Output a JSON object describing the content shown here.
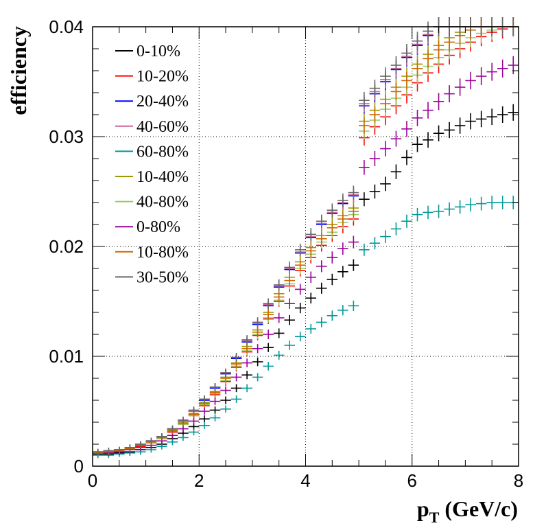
{
  "chart_data": {
    "type": "scatter",
    "title": "",
    "xlabel_main": "p",
    "xlabel_sub": "T",
    "xlabel_unit": " (GeV/c)",
    "ylabel": "efficiency",
    "xlim": [
      0,
      8
    ],
    "ylim": [
      0,
      0.04
    ],
    "x_ticks": [
      0,
      2,
      4,
      6,
      8
    ],
    "x_tick_labels": [
      "0",
      "2",
      "4",
      "6",
      "8"
    ],
    "y_ticks": [
      0,
      0.01,
      0.02,
      0.03,
      0.04
    ],
    "y_tick_labels": [
      "0",
      "0.01",
      "0.02",
      "0.03",
      "0.04"
    ],
    "grid": true,
    "legend_position": "top-left",
    "x": [
      0.1,
      0.3,
      0.5,
      0.7,
      0.9,
      1.1,
      1.3,
      1.5,
      1.7,
      1.9,
      2.1,
      2.3,
      2.5,
      2.7,
      2.9,
      3.1,
      3.3,
      3.5,
      3.7,
      3.9,
      4.1,
      4.3,
      4.5,
      4.7,
      4.9,
      5.1,
      5.3,
      5.5,
      5.7,
      5.9,
      6.1,
      6.3,
      6.5,
      6.7,
      6.9,
      7.1,
      7.3,
      7.5,
      7.7,
      7.9
    ],
    "series": [
      {
        "name": "0-10%",
        "color": "#000000",
        "values": [
          0.0011,
          0.0011,
          0.0012,
          0.0013,
          0.0015,
          0.0017,
          0.002,
          0.0025,
          0.003,
          0.0036,
          0.0043,
          0.0051,
          0.006,
          0.0071,
          0.0083,
          0.0095,
          0.0108,
          0.0121,
          0.0133,
          0.0144,
          0.0153,
          0.0162,
          0.017,
          0.0177,
          0.0183,
          0.0243,
          0.025,
          0.0257,
          0.0268,
          0.0281,
          0.0293,
          0.0297,
          0.0303,
          0.0306,
          0.031,
          0.0314,
          0.0316,
          0.0318,
          0.032,
          0.0322
        ]
      },
      {
        "name": "10-20%",
        "color": "#ff0000",
        "values": [
          0.0012,
          0.0013,
          0.0014,
          0.0016,
          0.0018,
          0.0021,
          0.0025,
          0.0031,
          0.0038,
          0.0046,
          0.0055,
          0.0065,
          0.0077,
          0.009,
          0.0104,
          0.0119,
          0.0134,
          0.015,
          0.0164,
          0.0178,
          0.019,
          0.0201,
          0.021,
          0.0218,
          0.0225,
          0.0299,
          0.0309,
          0.0318,
          0.0328,
          0.0338,
          0.0349,
          0.0358,
          0.0366,
          0.0374,
          0.038,
          0.0386,
          0.0391,
          0.0395,
          0.0398,
          0.04
        ]
      },
      {
        "name": "20-40%",
        "color": "#0000ff",
        "values": [
          0.0013,
          0.0014,
          0.0015,
          0.0017,
          0.002,
          0.0023,
          0.0027,
          0.0034,
          0.0041,
          0.005,
          0.006,
          0.0071,
          0.0084,
          0.0098,
          0.0113,
          0.0129,
          0.0146,
          0.0163,
          0.0179,
          0.0194,
          0.0208,
          0.022,
          0.023,
          0.0239,
          0.0246,
          0.0328,
          0.0339,
          0.035,
          0.0361,
          0.0372,
          0.0383,
          0.0392,
          0.04,
          0.04,
          0.04,
          0.04,
          0.04,
          0.04,
          0.04,
          0.04
        ]
      },
      {
        "name": "40-60%",
        "color": "#cc6699",
        "values": [
          0.0013,
          0.0014,
          0.0015,
          0.0017,
          0.002,
          0.0023,
          0.0027,
          0.0034,
          0.0041,
          0.005,
          0.0061,
          0.0072,
          0.0085,
          0.0099,
          0.0114,
          0.013,
          0.0147,
          0.0164,
          0.018,
          0.0195,
          0.0209,
          0.0221,
          0.0231,
          0.024,
          0.0247,
          0.033,
          0.0341,
          0.0352,
          0.0362,
          0.0373,
          0.0384,
          0.0393,
          0.04,
          0.04,
          0.04,
          0.04,
          0.04,
          0.04,
          0.04,
          0.04
        ]
      },
      {
        "name": "60-80%",
        "color": "#009999",
        "values": [
          0.001,
          0.001,
          0.0011,
          0.0012,
          0.0013,
          0.0015,
          0.0018,
          0.0022,
          0.0026,
          0.0031,
          0.0037,
          0.0044,
          0.0052,
          0.0061,
          0.0071,
          0.0081,
          0.0091,
          0.0101,
          0.011,
          0.0118,
          0.0125,
          0.0131,
          0.0137,
          0.0142,
          0.0146,
          0.0197,
          0.0203,
          0.0209,
          0.0216,
          0.0223,
          0.0229,
          0.0231,
          0.0232,
          0.0234,
          0.0236,
          0.0238,
          0.0239,
          0.024,
          0.024,
          0.024
        ]
      },
      {
        "name": "10-40%",
        "color": "#999900",
        "values": [
          0.0013,
          0.0013,
          0.0015,
          0.0017,
          0.0019,
          0.0022,
          0.0026,
          0.0033,
          0.004,
          0.0048,
          0.0058,
          0.0068,
          0.0081,
          0.0094,
          0.0109,
          0.0124,
          0.014,
          0.0157,
          0.0172,
          0.0186,
          0.0199,
          0.021,
          0.022,
          0.0228,
          0.0235,
          0.0314,
          0.0324,
          0.0334,
          0.0345,
          0.0355,
          0.0366,
          0.0375,
          0.0383,
          0.039,
          0.0395,
          0.04,
          0.04,
          0.04,
          0.04,
          0.04
        ]
      },
      {
        "name": "40-80%",
        "color": "#99cc66",
        "values": [
          0.0012,
          0.0013,
          0.0014,
          0.0016,
          0.0019,
          0.0021,
          0.0025,
          0.0032,
          0.0038,
          0.0046,
          0.0056,
          0.0066,
          0.0078,
          0.0091,
          0.0105,
          0.012,
          0.0135,
          0.0151,
          0.0166,
          0.018,
          0.0193,
          0.0204,
          0.0213,
          0.0222,
          0.0229,
          0.0305,
          0.0315,
          0.0325,
          0.0335,
          0.0345,
          0.0356,
          0.0364,
          0.0372,
          0.0379,
          0.0385,
          0.039,
          0.0394,
          0.0397,
          0.04,
          0.04
        ]
      },
      {
        "name": "0-80%",
        "color": "#990099",
        "values": [
          0.0012,
          0.0012,
          0.0013,
          0.0015,
          0.0017,
          0.0019,
          0.0023,
          0.0028,
          0.0034,
          0.0041,
          0.005,
          0.0059,
          0.0069,
          0.0081,
          0.0094,
          0.0107,
          0.012,
          0.0135,
          0.0148,
          0.0161,
          0.0172,
          0.0182,
          0.019,
          0.0198,
          0.0204,
          0.0272,
          0.028,
          0.0289,
          0.0298,
          0.0307,
          0.0317,
          0.0324,
          0.0332,
          0.0339,
          0.0345,
          0.0351,
          0.0355,
          0.0359,
          0.0362,
          0.0365
        ]
      },
      {
        "name": "10-80%",
        "color": "#cc6600",
        "values": [
          0.0012,
          0.0013,
          0.0014,
          0.0016,
          0.0019,
          0.0022,
          0.0026,
          0.0032,
          0.0039,
          0.0047,
          0.0057,
          0.0067,
          0.008,
          0.0093,
          0.0107,
          0.0122,
          0.0138,
          0.0154,
          0.0169,
          0.0183,
          0.0196,
          0.0207,
          0.0217,
          0.0225,
          0.0232,
          0.031,
          0.032,
          0.033,
          0.0341,
          0.0351,
          0.0362,
          0.0371,
          0.0379,
          0.0386,
          0.0392,
          0.0397,
          0.04,
          0.04,
          0.04,
          0.04
        ]
      },
      {
        "name": "30-50%",
        "color": "#666666",
        "values": [
          0.0013,
          0.0014,
          0.0015,
          0.0017,
          0.002,
          0.0023,
          0.0027,
          0.0034,
          0.0042,
          0.0051,
          0.0061,
          0.0072,
          0.0085,
          0.0099,
          0.0115,
          0.0131,
          0.0148,
          0.0165,
          0.0181,
          0.0197,
          0.0211,
          0.0223,
          0.0233,
          0.0242,
          0.0249,
          0.0333,
          0.0344,
          0.0355,
          0.0365,
          0.0376,
          0.0387,
          0.0396,
          0.04,
          0.04,
          0.04,
          0.04,
          0.04,
          0.04,
          0.04,
          0.04
        ]
      }
    ]
  }
}
